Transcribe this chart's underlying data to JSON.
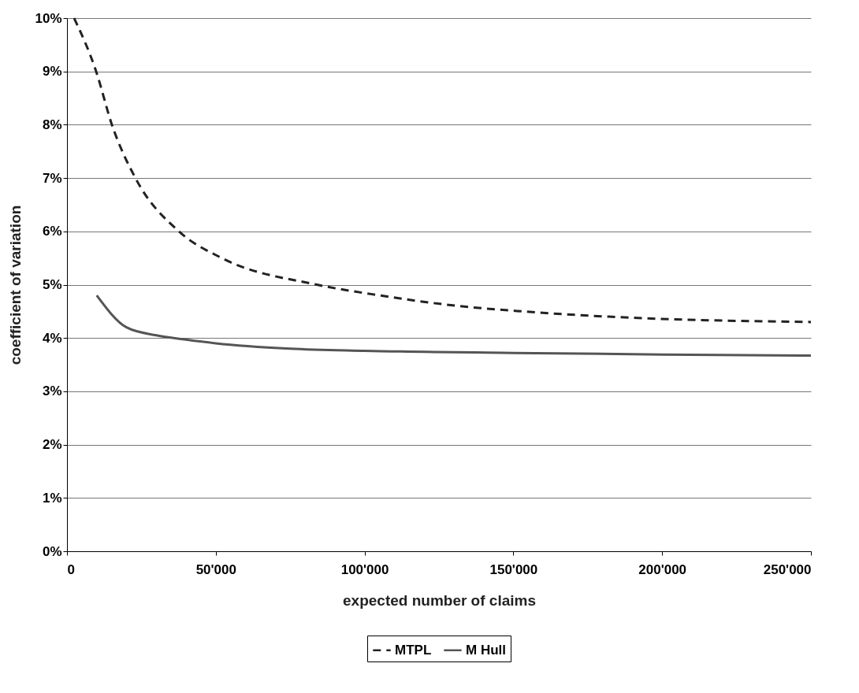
{
  "chart_data": {
    "type": "line",
    "xlabel": "expected number of claims",
    "ylabel": "coefficient of variation",
    "series": [
      {
        "name": "MTPL",
        "color": "#222222",
        "line_style": "dashed",
        "x": [
          2400,
          9800,
          15100,
          23000,
          37600,
          52000,
          84000,
          105000,
          131600,
          152800,
          182000,
          250000
        ],
        "values": [
          10,
          9,
          8,
          7,
          6,
          5.5,
          5,
          4.8,
          4.6,
          4.5,
          4.4,
          4.3
        ]
      },
      {
        "name": "M Hull",
        "color": "#555555",
        "line_style": "solid",
        "x": [
          10000,
          20000,
          30000,
          40000,
          50000,
          75000,
          100000,
          150000,
          200000,
          250000
        ],
        "values": [
          4.8,
          4.2,
          4.05,
          3.97,
          3.9,
          3.8,
          3.76,
          3.72,
          3.69,
          3.67
        ]
      }
    ],
    "xlim": [
      0,
      250000
    ],
    "xticks": [
      0,
      {
        "value": 50000,
        "label": "50'000"
      },
      {
        "value": 100000,
        "label": "100'000"
      },
      {
        "value": 150000,
        "label": "150'000"
      },
      {
        "value": 200000,
        "label": "200'000"
      },
      {
        "value": 250000,
        "label": "250'000"
      }
    ],
    "ylim": [
      0,
      10
    ],
    "yticks": [
      {
        "value": 0,
        "label": "0%"
      },
      {
        "value": 1,
        "label": "1%"
      },
      {
        "value": 2,
        "label": "2%"
      },
      {
        "value": 3,
        "label": "3%"
      },
      {
        "value": 4,
        "label": "4%"
      },
      {
        "value": 5,
        "label": "5%"
      },
      {
        "value": 6,
        "label": "6%"
      },
      {
        "value": 7,
        "label": "7%"
      },
      {
        "value": 8,
        "label": "8%"
      },
      {
        "value": 9,
        "label": "9%"
      },
      {
        "value": 10,
        "label": "10%"
      }
    ],
    "grid": "y",
    "legend": "bottom",
    "marker": "none"
  }
}
